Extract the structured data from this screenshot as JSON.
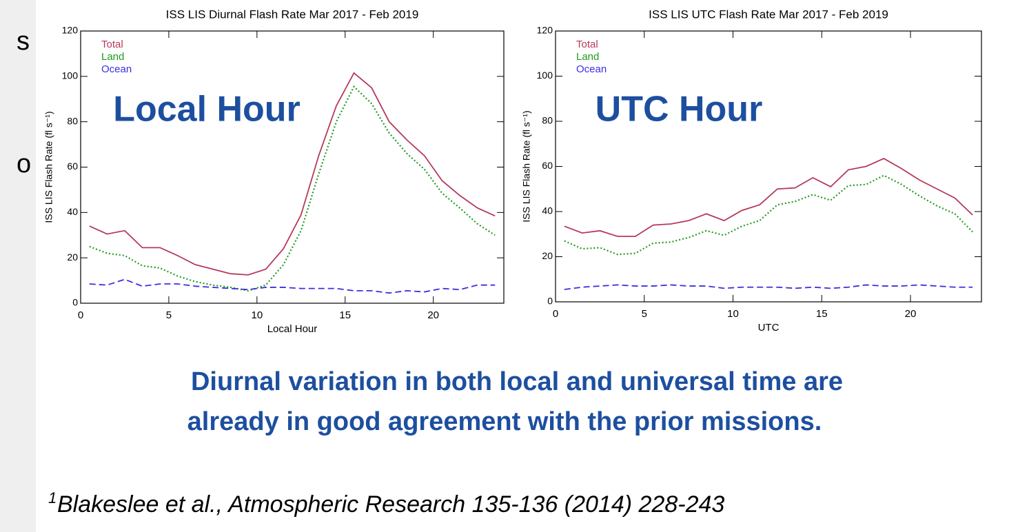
{
  "fragments": [
    "s",
    "o"
  ],
  "chart_data": [
    {
      "type": "line",
      "title": "ISS LIS Diurnal Flash Rate Mar 2017 - Feb 2019",
      "xlabel": "Local Hour",
      "ylabel": "ISS LIS Flash Rate (fl s⁻¹)",
      "annotation": "Local Hour",
      "x": [
        0.5,
        1.5,
        2.5,
        3.5,
        4.5,
        5.5,
        6.5,
        7.5,
        8.5,
        9.5,
        10.5,
        11.5,
        12.5,
        13.5,
        14.5,
        15.5,
        16.5,
        17.5,
        18.5,
        19.5,
        20.5,
        21.5,
        22.5,
        23.5
      ],
      "series": [
        {
          "name": "Total",
          "color": "#b5395a",
          "dash": "solid",
          "values": [
            34,
            30.5,
            32,
            24.5,
            24.5,
            21,
            17,
            15,
            13,
            12.5,
            15,
            24,
            39,
            65,
            87,
            101.5,
            95,
            80,
            72,
            65,
            54,
            47.5,
            42,
            38.5
          ]
        },
        {
          "name": "Land",
          "color": "#1f9a1f",
          "dash": "dotted",
          "values": [
            25,
            22,
            21,
            16.5,
            15.5,
            12,
            9.5,
            8,
            7,
            5.5,
            8,
            17,
            32,
            57,
            80,
            95.5,
            88,
            75,
            66,
            59,
            48.5,
            42,
            35,
            30
          ]
        },
        {
          "name": "Ocean",
          "color": "#3a2ee0",
          "dash": "dashed",
          "values": [
            8.5,
            8,
            10.5,
            7.5,
            8.5,
            8.5,
            7.5,
            7,
            6.5,
            6,
            7,
            7,
            6.5,
            6.5,
            6.5,
            5.5,
            5.5,
            4.5,
            5.5,
            5,
            6.5,
            6,
            8,
            8
          ]
        }
      ],
      "xlim": [
        0,
        24
      ],
      "xticks": [
        0,
        5,
        10,
        15,
        20
      ],
      "ylim": [
        0,
        120
      ],
      "yticks": [
        0,
        20,
        40,
        60,
        80,
        100,
        120
      ],
      "legend": "upper left"
    },
    {
      "type": "line",
      "title": "ISS LIS UTC Flash Rate Mar 2017 - Feb 2019",
      "xlabel": "UTC",
      "ylabel": "ISS LIS Flash Rate (fl s⁻¹)",
      "annotation": "UTC Hour",
      "x": [
        0.5,
        1.5,
        2.5,
        3.5,
        4.5,
        5.5,
        6.5,
        7.5,
        8.5,
        9.5,
        10.5,
        11.5,
        12.5,
        13.5,
        14.5,
        15.5,
        16.5,
        17.5,
        18.5,
        19.5,
        20.5,
        21.5,
        22.5,
        23.5
      ],
      "series": [
        {
          "name": "Total",
          "color": "#b5395a",
          "dash": "solid",
          "values": [
            33.5,
            30.5,
            31.5,
            29,
            29,
            34,
            34.5,
            36,
            39,
            36,
            40.5,
            43,
            50,
            50.5,
            55,
            51,
            58.5,
            60,
            63.5,
            59,
            54,
            50,
            46,
            38.5
          ]
        },
        {
          "name": "Land",
          "color": "#1f9a1f",
          "dash": "dotted",
          "values": [
            27,
            23.5,
            24,
            21,
            21.5,
            26,
            26.5,
            28.5,
            31.5,
            29.5,
            33.5,
            36,
            43,
            44.5,
            47.5,
            45,
            51.5,
            52,
            56,
            52,
            47,
            42.5,
            39,
            31
          ]
        },
        {
          "name": "Ocean",
          "color": "#3a2ee0",
          "dash": "dashed",
          "values": [
            5.5,
            6.5,
            7,
            7.5,
            7,
            7,
            7.5,
            7,
            7,
            6,
            6.5,
            6.5,
            6.5,
            6,
            6.5,
            6,
            6.5,
            7.5,
            7,
            7,
            7.5,
            7,
            6.5,
            6.5
          ]
        }
      ],
      "xlim": [
        0,
        24
      ],
      "xticks": [
        0,
        5,
        10,
        15,
        20
      ],
      "ylim": [
        0,
        120
      ],
      "yticks": [
        0,
        20,
        40,
        60,
        80,
        100,
        120
      ],
      "legend": "upper left"
    }
  ],
  "caption": [
    "Diurnal variation in both local and universal time are",
    "already in good agreement with the prior missions."
  ],
  "footnote": {
    "marker": "1",
    "text": "Blakeslee et al., Atmospheric Research 135-136 (2014) 228-243"
  }
}
